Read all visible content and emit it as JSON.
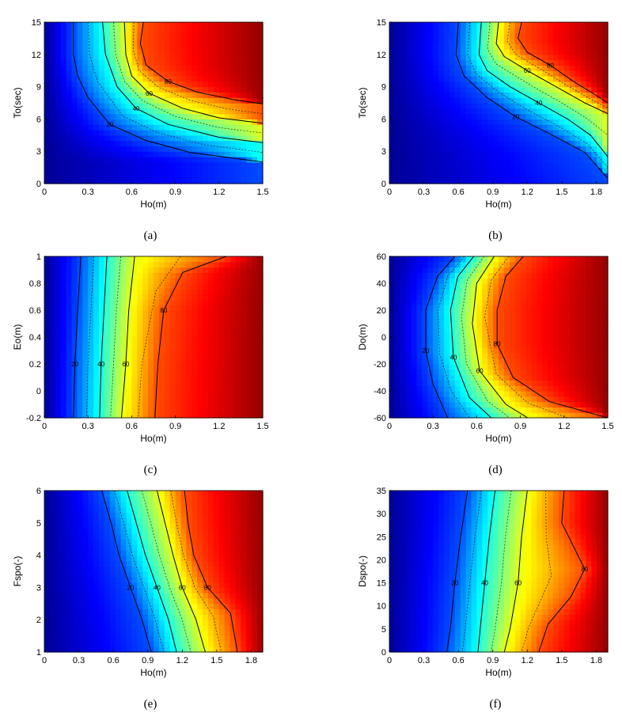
{
  "chart_data": [
    {
      "type": "heatmap",
      "caption": "(a)",
      "xlabel": "Ho(m)",
      "ylabel": "To(sec)",
      "xlim": [
        0,
        1.5
      ],
      "ylim": [
        0,
        15
      ],
      "xticks": [
        "0",
        "0.3",
        "0.6",
        "0.9",
        "1.2",
        "1.5"
      ],
      "yticks": [
        "0",
        "3",
        "6",
        "9",
        "12",
        "15"
      ],
      "grid": false,
      "colorscale": "jet",
      "value_range": [
        0,
        100
      ],
      "contour_levels": [
        20,
        40,
        60,
        80
      ],
      "contours": [
        {
          "level": 20,
          "label": "20",
          "points": [
            [
              0.2,
              15
            ],
            [
              0.2,
              12
            ],
            [
              0.23,
              10
            ],
            [
              0.3,
              8
            ],
            [
              0.45,
              5.5
            ],
            [
              0.7,
              4
            ],
            [
              1.0,
              2.9
            ],
            [
              1.5,
              2.0
            ]
          ]
        },
        {
          "level": 40,
          "label": "40",
          "points": [
            [
              0.4,
              15
            ],
            [
              0.42,
              12
            ],
            [
              0.5,
              9
            ],
            [
              0.63,
              7
            ],
            [
              0.85,
              5.5
            ],
            [
              1.2,
              4.3
            ],
            [
              1.5,
              3.8
            ]
          ]
        },
        {
          "level": 60,
          "label": "60",
          "points": [
            [
              0.55,
              15
            ],
            [
              0.56,
              12
            ],
            [
              0.6,
              10
            ],
            [
              0.72,
              8.4
            ],
            [
              0.95,
              7.0
            ],
            [
              1.2,
              6.1
            ],
            [
              1.5,
              5.6
            ]
          ]
        },
        {
          "level": 80,
          "label": "80",
          "points": [
            [
              0.68,
              15
            ],
            [
              0.66,
              13
            ],
            [
              0.7,
              11
            ],
            [
              0.85,
              9.5
            ],
            [
              1.05,
              8.5
            ],
            [
              1.3,
              7.8
            ],
            [
              1.5,
              7.4
            ]
          ]
        }
      ]
    },
    {
      "type": "heatmap",
      "caption": "(b)",
      "xlabel": "Ho(m)",
      "ylabel": "To(sec)",
      "xlim": [
        0,
        1.9
      ],
      "ylim": [
        0,
        15
      ],
      "xticks": [
        "0",
        "0.3",
        "0.6",
        "0.9",
        "1.2",
        "1.5",
        "1.8"
      ],
      "yticks": [
        "0",
        "3",
        "6",
        "9",
        "12",
        "15"
      ],
      "grid": false,
      "colorscale": "jet",
      "value_range": [
        0,
        100
      ],
      "contour_levels": [
        20,
        40,
        60,
        80
      ],
      "contours": [
        {
          "level": 20,
          "label": "20",
          "points": [
            [
              0.6,
              15
            ],
            [
              0.58,
              12
            ],
            [
              0.65,
              10
            ],
            [
              0.85,
              8
            ],
            [
              1.1,
              6.2
            ],
            [
              1.4,
              4.6
            ],
            [
              1.7,
              2.9
            ],
            [
              1.9,
              0.5
            ]
          ]
        },
        {
          "level": 40,
          "label": "40",
          "points": [
            [
              0.8,
              15
            ],
            [
              0.78,
              12
            ],
            [
              0.85,
              10.5
            ],
            [
              1.05,
              9
            ],
            [
              1.3,
              7.5
            ],
            [
              1.55,
              6
            ],
            [
              1.75,
              4.5
            ],
            [
              1.9,
              2.5
            ]
          ]
        },
        {
          "level": 60,
          "label": "60",
          "points": [
            [
              0.95,
              15
            ],
            [
              0.93,
              13
            ],
            [
              1.0,
              11.8
            ],
            [
              1.2,
              10.5
            ],
            [
              1.45,
              9
            ],
            [
              1.7,
              7.5
            ],
            [
              1.9,
              6.5
            ]
          ]
        },
        {
          "level": 80,
          "label": "80",
          "points": [
            [
              1.15,
              15
            ],
            [
              1.12,
              13.5
            ],
            [
              1.2,
              12.2
            ],
            [
              1.4,
              11
            ],
            [
              1.6,
              9.5
            ],
            [
              1.8,
              8.2
            ],
            [
              1.9,
              7.5
            ]
          ]
        }
      ]
    },
    {
      "type": "heatmap",
      "caption": "(c)",
      "xlabel": "Ho(m)",
      "ylabel": "Eo(m)",
      "xlim": [
        0,
        1.5
      ],
      "ylim": [
        -0.2,
        1
      ],
      "xticks": [
        "0",
        "0.3",
        "0.6",
        "0.9",
        "1.2",
        "1.5"
      ],
      "yticks": [
        "-0.2",
        "0",
        "0.2",
        "0.4",
        "0.6",
        "0.8",
        "1"
      ],
      "grid": false,
      "colorscale": "jet",
      "value_range": [
        0,
        100
      ],
      "contour_levels": [
        20,
        40,
        60,
        80
      ],
      "contours": [
        {
          "level": 20,
          "label": "20",
          "points": [
            [
              0.25,
              1
            ],
            [
              0.23,
              0.6
            ],
            [
              0.21,
              0.2
            ],
            [
              0.2,
              -0.2
            ]
          ]
        },
        {
          "level": 40,
          "label": "40",
          "points": [
            [
              0.43,
              1
            ],
            [
              0.41,
              0.6
            ],
            [
              0.39,
              0.2
            ],
            [
              0.38,
              -0.2
            ]
          ]
        },
        {
          "level": 60,
          "label": "60",
          "points": [
            [
              0.62,
              1
            ],
            [
              0.58,
              0.6
            ],
            [
              0.56,
              0.2
            ],
            [
              0.53,
              -0.2
            ]
          ]
        },
        {
          "level": 80,
          "label": "80",
          "points": [
            [
              1.25,
              1
            ],
            [
              0.95,
              0.88
            ],
            [
              0.82,
              0.6
            ],
            [
              0.78,
              0.2
            ],
            [
              0.76,
              -0.2
            ]
          ]
        }
      ]
    },
    {
      "type": "heatmap",
      "caption": "(d)",
      "xlabel": "Ho(m)",
      "ylabel": "Do(m)",
      "xlim": [
        0,
        1.5
      ],
      "ylim": [
        -60,
        60
      ],
      "xticks": [
        "0",
        "0.3",
        "0.6",
        "0.9",
        "1.2",
        "1.5"
      ],
      "yticks": [
        "-60",
        "-40",
        "-20",
        "0",
        "20",
        "40",
        "60"
      ],
      "grid": false,
      "colorscale": "jet",
      "value_range": [
        0,
        100
      ],
      "contour_levels": [
        20,
        40,
        60,
        80
      ],
      "contours": [
        {
          "level": 20,
          "label": "20",
          "points": [
            [
              0.45,
              60
            ],
            [
              0.33,
              45
            ],
            [
              0.25,
              20
            ],
            [
              0.25,
              -10
            ],
            [
              0.3,
              -35
            ],
            [
              0.4,
              -60
            ]
          ]
        },
        {
          "level": 40,
          "label": "40",
          "points": [
            [
              0.58,
              60
            ],
            [
              0.47,
              45
            ],
            [
              0.42,
              20
            ],
            [
              0.44,
              -15
            ],
            [
              0.55,
              -45
            ],
            [
              0.7,
              -60
            ]
          ]
        },
        {
          "level": 60,
          "label": "60",
          "points": [
            [
              0.72,
              60
            ],
            [
              0.6,
              40
            ],
            [
              0.57,
              10
            ],
            [
              0.62,
              -25
            ],
            [
              0.8,
              -50
            ],
            [
              0.95,
              -60
            ]
          ]
        },
        {
          "level": 80,
          "label": "80",
          "points": [
            [
              0.92,
              60
            ],
            [
              0.8,
              45
            ],
            [
              0.74,
              20
            ],
            [
              0.74,
              -5
            ],
            [
              0.85,
              -30
            ],
            [
              1.1,
              -48
            ],
            [
              1.5,
              -60
            ]
          ]
        }
      ]
    },
    {
      "type": "heatmap",
      "caption": "(e)",
      "xlabel": "Ho(m)",
      "ylabel": "Fspo(-)",
      "xlim": [
        0,
        1.9
      ],
      "ylim": [
        1,
        6
      ],
      "xticks": [
        "0",
        "0.3",
        "0.6",
        "0.9",
        "1.2",
        "1.5",
        "1.8"
      ],
      "yticks": [
        "1",
        "2",
        "3",
        "4",
        "5",
        "6"
      ],
      "grid": false,
      "colorscale": "jet",
      "value_range": [
        0,
        100
      ],
      "contour_levels": [
        20,
        40,
        60,
        80
      ],
      "contours": [
        {
          "level": 20,
          "label": "20",
          "points": [
            [
              0.5,
              6
            ],
            [
              0.58,
              5
            ],
            [
              0.65,
              4
            ],
            [
              0.75,
              3
            ],
            [
              0.85,
              2
            ],
            [
              0.93,
              1
            ]
          ]
        },
        {
          "level": 40,
          "label": "40",
          "points": [
            [
              0.72,
              6
            ],
            [
              0.8,
              5
            ],
            [
              0.88,
              4
            ],
            [
              0.98,
              3
            ],
            [
              1.08,
              2
            ],
            [
              1.15,
              1
            ]
          ]
        },
        {
          "level": 60,
          "label": "60",
          "points": [
            [
              0.98,
              6
            ],
            [
              1.05,
              5
            ],
            [
              1.12,
              4
            ],
            [
              1.2,
              3
            ],
            [
              1.32,
              2
            ],
            [
              1.4,
              1
            ]
          ]
        },
        {
          "level": 80,
          "label": "80",
          "points": [
            [
              1.22,
              6
            ],
            [
              1.25,
              5
            ],
            [
              1.3,
              4
            ],
            [
              1.42,
              3
            ],
            [
              1.62,
              2.2
            ],
            [
              1.68,
              1
            ]
          ]
        }
      ]
    },
    {
      "type": "heatmap",
      "caption": "(f)",
      "xlabel": "Ho(m)",
      "ylabel": "Dspo(-)",
      "xlim": [
        0,
        1.9
      ],
      "ylim": [
        0,
        35
      ],
      "xticks": [
        "0",
        "0.3",
        "0.6",
        "0.9",
        "1.2",
        "1.5",
        "1.8"
      ],
      "yticks": [
        "0",
        "5",
        "10",
        "15",
        "20",
        "25",
        "30",
        "35"
      ],
      "grid": false,
      "colorscale": "jet",
      "value_range": [
        0,
        100
      ],
      "contour_levels": [
        20,
        40,
        60,
        80
      ],
      "contours": [
        {
          "level": 20,
          "label": "20",
          "points": [
            [
              0.68,
              35
            ],
            [
              0.62,
              25
            ],
            [
              0.57,
              15
            ],
            [
              0.53,
              5
            ],
            [
              0.5,
              0
            ]
          ]
        },
        {
          "level": 40,
          "label": "40",
          "points": [
            [
              0.92,
              35
            ],
            [
              0.87,
              25
            ],
            [
              0.83,
              15
            ],
            [
              0.79,
              5
            ],
            [
              0.77,
              0
            ]
          ]
        },
        {
          "level": 60,
          "label": "60",
          "points": [
            [
              1.2,
              35
            ],
            [
              1.15,
              25
            ],
            [
              1.12,
              15
            ],
            [
              1.05,
              5
            ],
            [
              1.0,
              0
            ]
          ]
        },
        {
          "level": 80,
          "label": "80",
          "points": [
            [
              1.52,
              35
            ],
            [
              1.5,
              28
            ],
            [
              1.58,
              24
            ],
            [
              1.7,
              18
            ],
            [
              1.58,
              12
            ],
            [
              1.38,
              6
            ],
            [
              1.3,
              0
            ]
          ]
        }
      ]
    }
  ]
}
